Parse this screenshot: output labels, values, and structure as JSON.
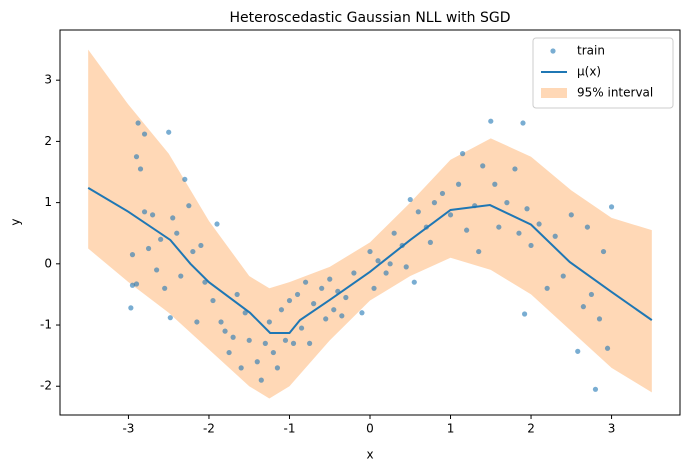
{
  "chart_data": {
    "type": "scatter_line_band",
    "title": "Heteroscedastic Gaussian NLL with SGD",
    "x_label": "x",
    "y_label": "y",
    "xlim": [
      -3.85,
      3.85
    ],
    "ylim": [
      -2.47,
      3.82
    ],
    "xticks": [
      -3,
      -2,
      -1,
      0,
      1,
      2,
      3
    ],
    "yticks": [
      -2,
      -1,
      0,
      1,
      2,
      3
    ],
    "legend_position": "upper right",
    "series": [
      {
        "name": "train",
        "kind": "scatter",
        "color": "#1f77b4",
        "x": [
          -2.95,
          -2.97,
          -2.9,
          -2.88,
          -2.85,
          -2.8,
          -2.9,
          -2.95,
          -2.8,
          -2.75,
          -2.7,
          -2.65,
          -2.6,
          -2.55,
          -2.5,
          -2.48,
          -2.45,
          -2.4,
          -2.35,
          -2.3,
          -2.25,
          -2.2,
          -2.15,
          -2.1,
          -2.05,
          -1.95,
          -1.9,
          -1.85,
          -1.8,
          -1.75,
          -1.7,
          -1.65,
          -1.6,
          -1.55,
          -1.5,
          -1.4,
          -1.35,
          -1.3,
          -1.25,
          -1.2,
          -1.15,
          -1.1,
          -1.05,
          -1.0,
          -0.95,
          -0.9,
          -0.85,
          -0.8,
          -0.75,
          -0.7,
          -0.6,
          -0.55,
          -0.5,
          -0.45,
          -0.4,
          -0.3,
          -0.2,
          -0.1,
          0.0,
          0.05,
          0.1,
          0.2,
          0.3,
          0.4,
          0.45,
          0.5,
          0.55,
          0.6,
          0.7,
          0.8,
          0.9,
          1.0,
          1.1,
          1.15,
          1.2,
          1.3,
          1.35,
          1.4,
          1.5,
          1.55,
          1.6,
          1.7,
          1.8,
          1.85,
          1.9,
          1.92,
          1.95,
          2.0,
          2.1,
          2.2,
          2.3,
          2.4,
          2.5,
          2.58,
          2.65,
          2.7,
          2.8,
          2.75,
          2.85,
          2.9,
          2.95,
          3.0,
          -0.35,
          0.25,
          0.75
        ],
        "values": [
          -0.35,
          -0.72,
          -0.33,
          2.3,
          1.55,
          2.12,
          1.75,
          0.15,
          0.85,
          0.25,
          0.8,
          -0.1,
          0.4,
          -0.4,
          2.15,
          -0.88,
          0.75,
          0.5,
          -0.2,
          1.38,
          0.95,
          0.2,
          -0.95,
          0.3,
          -0.3,
          -0.6,
          0.65,
          -0.95,
          -1.1,
          -1.45,
          -1.2,
          -0.5,
          -1.7,
          -0.8,
          -1.25,
          -1.6,
          -1.9,
          -1.3,
          -0.95,
          -1.45,
          -1.7,
          -0.75,
          -1.25,
          -0.6,
          -1.3,
          -0.5,
          -1.05,
          -0.3,
          -1.3,
          -0.65,
          -0.4,
          -0.9,
          -0.25,
          -0.75,
          -0.45,
          -0.55,
          -0.15,
          -0.8,
          0.2,
          -0.4,
          0.05,
          -0.15,
          0.5,
          0.3,
          -0.05,
          1.05,
          -0.3,
          0.85,
          0.6,
          1.0,
          1.15,
          0.8,
          1.3,
          1.8,
          0.55,
          0.95,
          0.2,
          1.6,
          2.33,
          1.3,
          0.6,
          1.0,
          1.55,
          0.5,
          2.3,
          -0.82,
          0.9,
          0.3,
          0.65,
          -0.4,
          0.45,
          -0.2,
          0.8,
          -1.43,
          -0.7,
          0.6,
          -2.05,
          -0.5,
          -0.9,
          0.2,
          -1.38,
          0.93,
          -0.85,
          0.0,
          0.35
        ]
      },
      {
        "name": "μ(x)",
        "kind": "line",
        "color": "#1f77b4",
        "x": [
          -3.5,
          -3,
          -2.48,
          -2.23,
          -2,
          -1.49,
          -1.24,
          -1,
          -0.87,
          -0.5,
          0,
          0.5,
          1,
          1.49,
          2,
          2.48,
          3,
          3.5
        ],
        "values": [
          1.24,
          0.85,
          0.39,
          0,
          -0.3,
          -0.8,
          -1.13,
          -1.13,
          -0.92,
          -0.59,
          -0.13,
          0.39,
          0.88,
          0.96,
          0.64,
          0.03,
          -0.46,
          -0.92
        ]
      },
      {
        "name": "95% interval",
        "kind": "band",
        "color": "#ff7f0e",
        "x": [
          -3.5,
          -3,
          -2.5,
          -2,
          -1.5,
          -1.25,
          -1,
          -0.5,
          0,
          0.5,
          1,
          1.5,
          2,
          2.5,
          3,
          3.5
        ],
        "upper": [
          3.5,
          2.6,
          1.8,
          0.7,
          -0.2,
          -0.4,
          -0.3,
          -0.05,
          0.35,
          1.0,
          1.7,
          2.05,
          1.75,
          1.2,
          0.75,
          0.55
        ],
        "lower": [
          0.25,
          -0.3,
          -0.8,
          -1.4,
          -2.0,
          -2.2,
          -2.0,
          -1.25,
          -0.6,
          -0.2,
          0.1,
          -0.1,
          -0.5,
          -1.1,
          -1.7,
          -2.1
        ]
      }
    ]
  }
}
